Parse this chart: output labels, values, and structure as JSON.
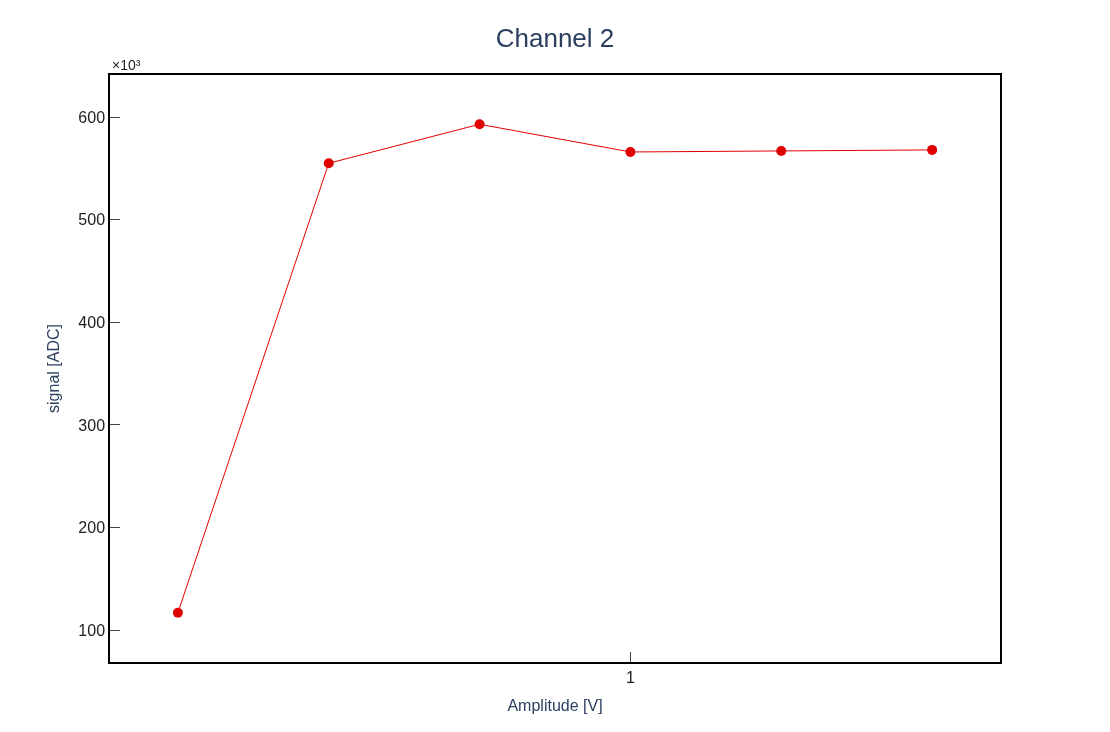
{
  "chart_data": {
    "type": "line",
    "title": "Channel 2",
    "xlabel": "Amplitude [V]",
    "ylabel": "signal [ADC]",
    "annotations": [
      "×10³"
    ],
    "categories": [
      null,
      null,
      null,
      "1",
      null,
      null
    ],
    "series": [
      {
        "color": "#e00000",
        "values": [
          117,
          555,
          593,
          566,
          567,
          568
        ]
      }
    ],
    "ylim": [
      69,
      641
    ],
    "yticks": [
      100,
      200,
      300,
      400,
      500,
      600
    ],
    "marker": "circle",
    "line_style": "solid"
  }
}
